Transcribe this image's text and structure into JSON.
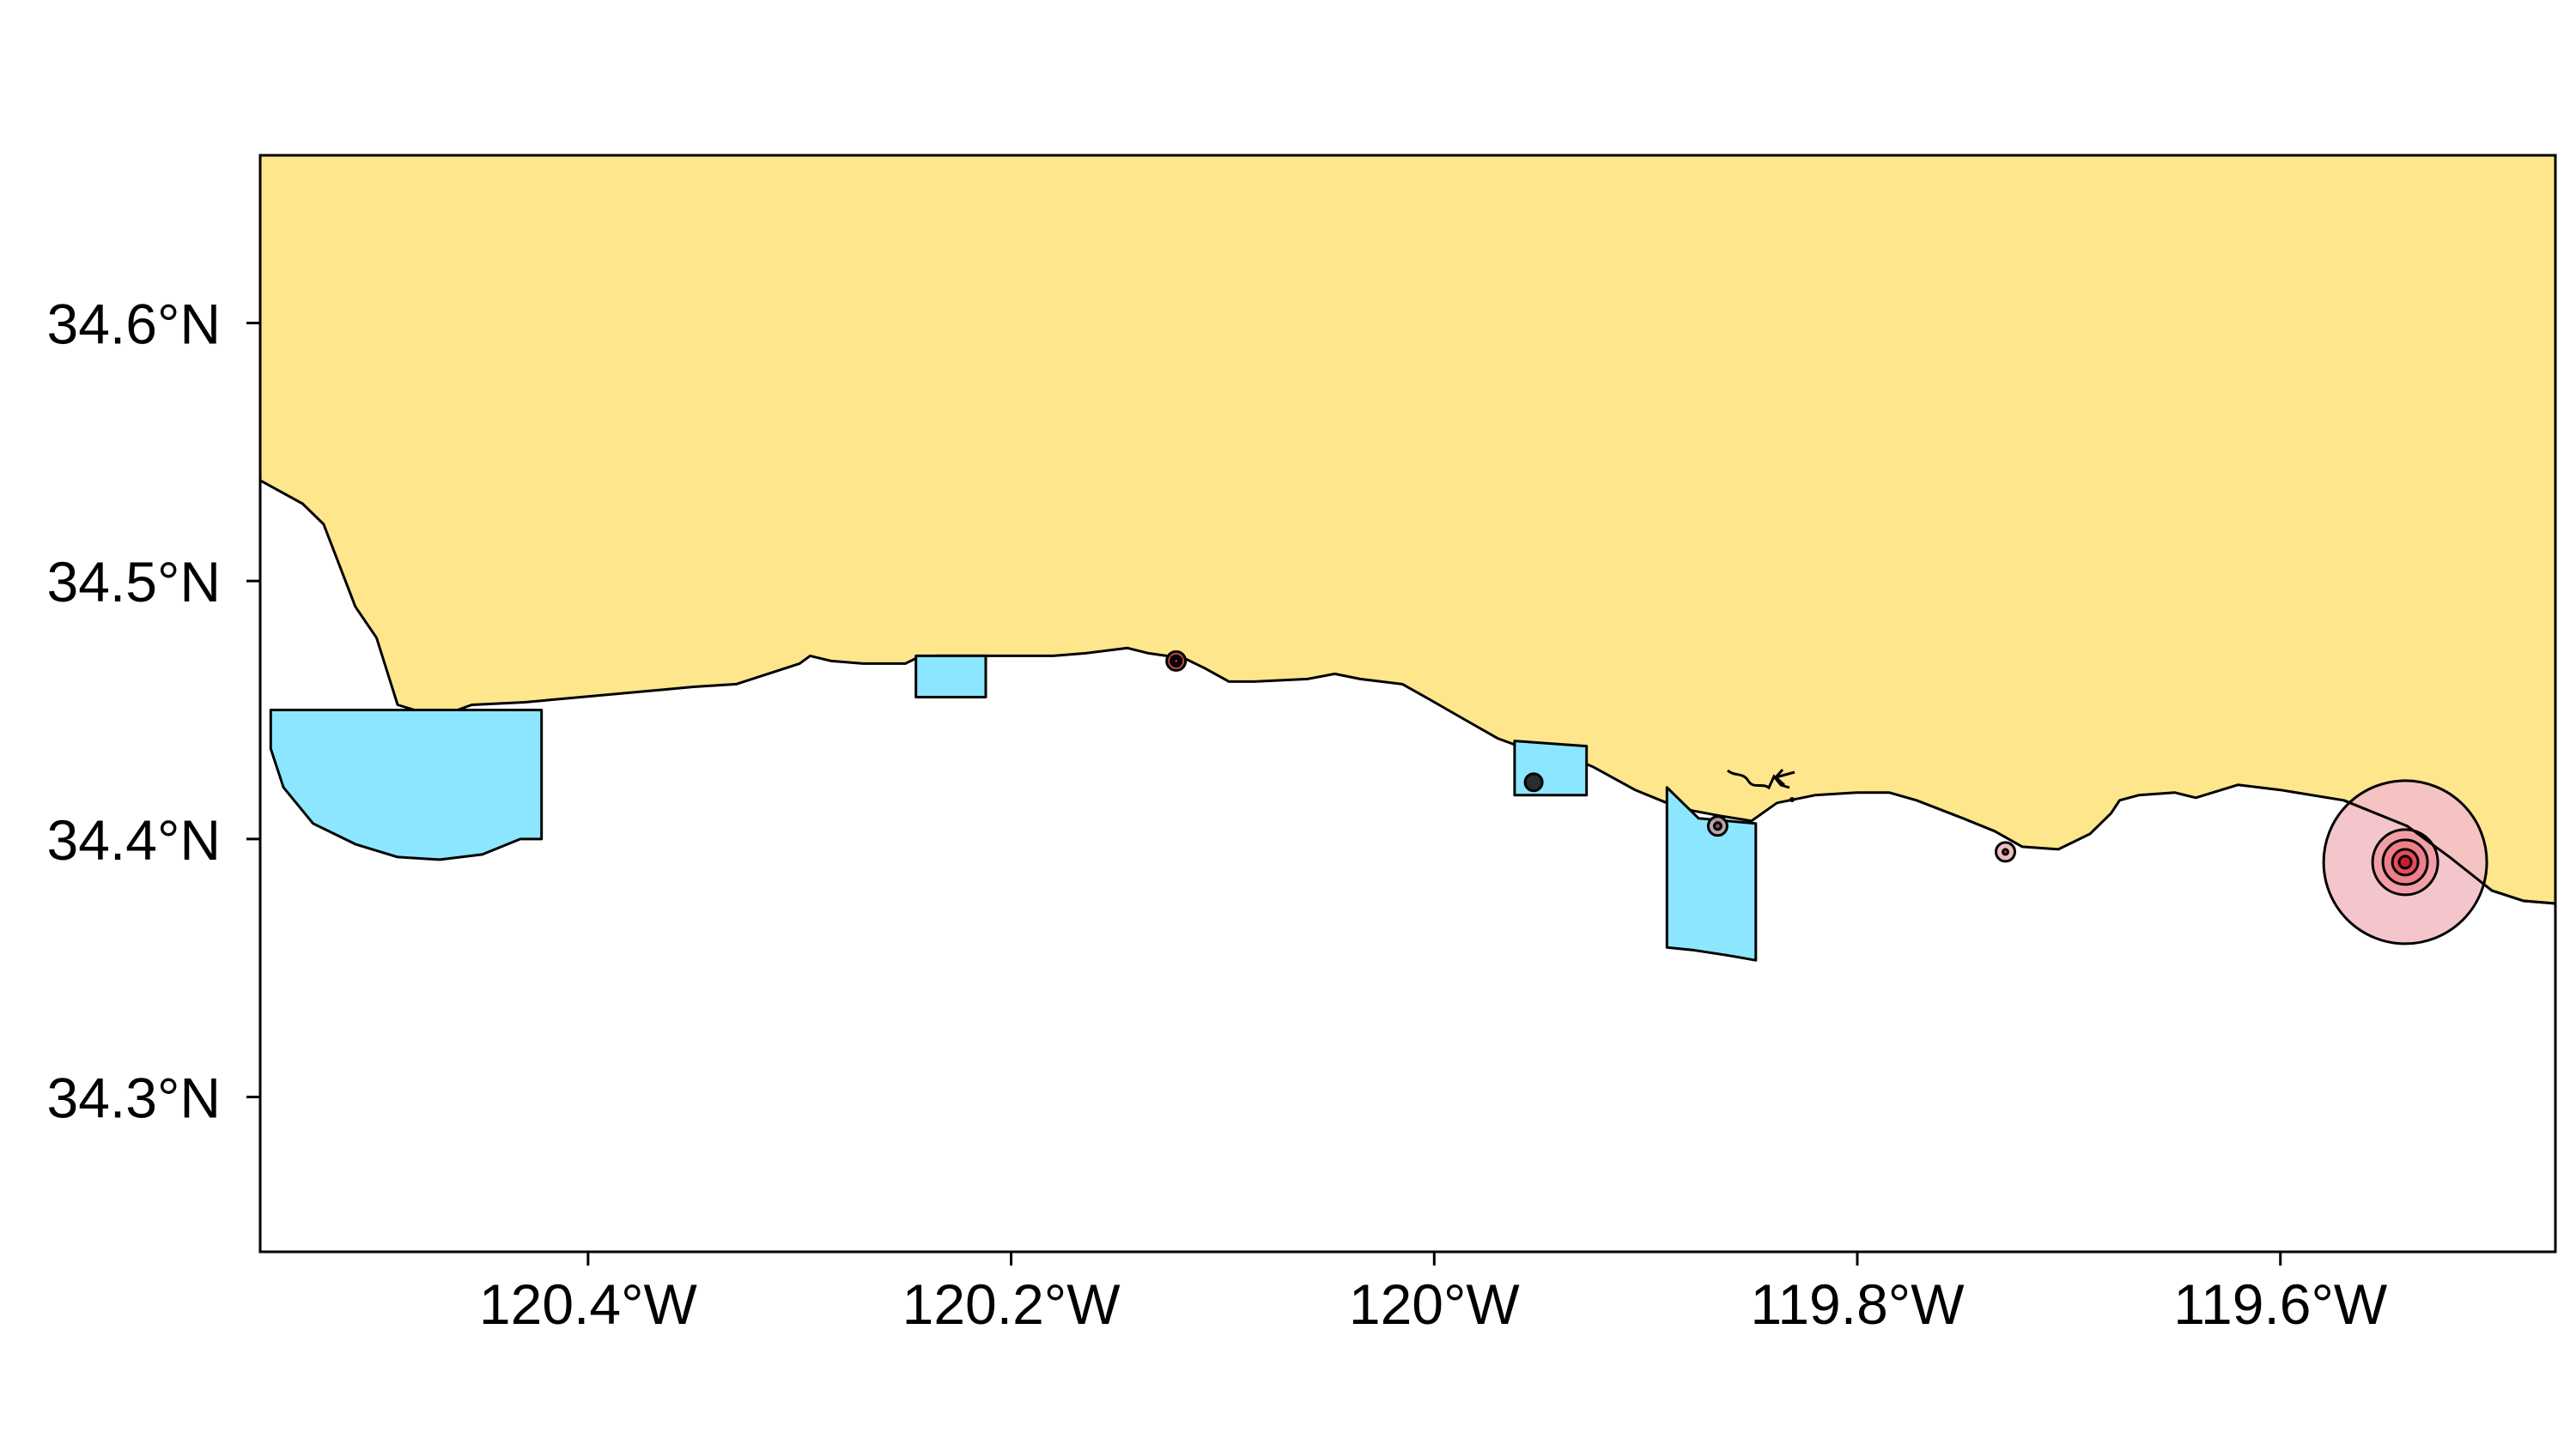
{
  "colors": {
    "land": "#FDE68C",
    "protected_area": "#8CE6FF",
    "outline": "#000000",
    "background": "#FFFFFF"
  },
  "axes": {
    "x_range": [
      -120.555,
      -119.47
    ],
    "y_range": [
      34.24,
      34.665
    ],
    "x_ticks": [
      {
        "value": -120.4,
        "label": "120.4°W"
      },
      {
        "value": -120.2,
        "label": "120.2°W"
      },
      {
        "value": -120.0,
        "label": "120°W"
      },
      {
        "value": -119.8,
        "label": "119.8°W"
      },
      {
        "value": -119.6,
        "label": "119.6°W"
      }
    ],
    "y_ticks": [
      {
        "value": 34.6,
        "label": "34.6°N"
      },
      {
        "value": 34.5,
        "label": "34.5°N"
      },
      {
        "value": 34.4,
        "label": "34.4°N"
      },
      {
        "value": 34.3,
        "label": "34.3°N"
      }
    ]
  },
  "coastline": [
    [
      -120.555,
      34.539
    ],
    [
      -120.535,
      34.53
    ],
    [
      -120.525,
      34.522
    ],
    [
      -120.51,
      34.49
    ],
    [
      -120.5,
      34.478
    ],
    [
      -120.495,
      34.465
    ],
    [
      -120.49,
      34.452
    ],
    [
      -120.482,
      34.45
    ],
    [
      -120.476,
      34.447
    ],
    [
      -120.465,
      34.449
    ],
    [
      -120.455,
      34.452
    ],
    [
      -120.43,
      34.453
    ],
    [
      -120.39,
      34.456
    ],
    [
      -120.35,
      34.459
    ],
    [
      -120.33,
      34.46
    ],
    [
      -120.315,
      34.464
    ],
    [
      -120.3,
      34.468
    ],
    [
      -120.295,
      34.471
    ],
    [
      -120.285,
      34.469
    ],
    [
      -120.27,
      34.468
    ],
    [
      -120.25,
      34.468
    ],
    [
      -120.245,
      34.47
    ],
    [
      -120.235,
      34.471
    ],
    [
      -120.22,
      34.471
    ],
    [
      -120.18,
      34.471
    ],
    [
      -120.165,
      34.472
    ],
    [
      -120.145,
      34.474
    ],
    [
      -120.135,
      34.472
    ],
    [
      -120.118,
      34.47
    ],
    [
      -120.108,
      34.466
    ],
    [
      -120.097,
      34.461
    ],
    [
      -120.085,
      34.461
    ],
    [
      -120.06,
      34.462
    ],
    [
      -120.047,
      34.464
    ],
    [
      -120.035,
      34.462
    ],
    [
      -120.015,
      34.46
    ],
    [
      -120.002,
      34.454
    ],
    [
      -119.985,
      34.446
    ],
    [
      -119.97,
      34.439
    ],
    [
      -119.96,
      34.436
    ],
    [
      -119.945,
      34.435
    ],
    [
      -119.925,
      34.428
    ],
    [
      -119.905,
      34.419
    ],
    [
      -119.89,
      34.414
    ],
    [
      -119.878,
      34.411
    ],
    [
      -119.865,
      34.409
    ],
    [
      -119.85,
      34.407
    ],
    [
      -119.838,
      34.414
    ],
    [
      -119.82,
      34.417
    ],
    [
      -119.8,
      34.418
    ],
    [
      -119.785,
      34.418
    ],
    [
      -119.772,
      34.415
    ],
    [
      -119.75,
      34.408
    ],
    [
      -119.735,
      34.403
    ],
    [
      -119.722,
      34.397
    ],
    [
      -119.705,
      34.396
    ],
    [
      -119.69,
      34.402
    ],
    [
      -119.68,
      34.41
    ],
    [
      -119.676,
      34.415
    ],
    [
      -119.667,
      34.417
    ],
    [
      -119.65,
      34.418
    ],
    [
      -119.64,
      34.416
    ],
    [
      -119.62,
      34.421
    ],
    [
      -119.6,
      34.419
    ],
    [
      -119.57,
      34.415
    ],
    [
      -119.54,
      34.405
    ],
    [
      -119.52,
      34.393
    ],
    [
      -119.5,
      34.38
    ],
    [
      -119.485,
      34.376
    ],
    [
      -119.47,
      34.375
    ]
  ],
  "protected_areas": [
    [
      [
        -120.55,
        34.45
      ],
      [
        -120.422,
        34.45
      ],
      [
        -120.422,
        34.4
      ],
      [
        -120.432,
        34.4
      ],
      [
        -120.45,
        34.394
      ],
      [
        -120.47,
        34.392
      ],
      [
        -120.49,
        34.393
      ],
      [
        -120.51,
        34.398
      ],
      [
        -120.53,
        34.406
      ],
      [
        -120.544,
        34.42
      ],
      [
        -120.55,
        34.435
      ]
    ],
    [
      [
        -120.245,
        34.471
      ],
      [
        -120.212,
        34.471
      ],
      [
        -120.212,
        34.455
      ],
      [
        -120.245,
        34.455
      ]
    ],
    [
      [
        -119.962,
        34.438
      ],
      [
        -119.928,
        34.436
      ],
      [
        -119.928,
        34.417
      ],
      [
        -119.962,
        34.417
      ]
    ],
    [
      [
        -119.89,
        34.42
      ],
      [
        -119.875,
        34.408
      ],
      [
        -119.848,
        34.406
      ],
      [
        -119.848,
        34.353
      ],
      [
        -119.862,
        34.355
      ],
      [
        -119.878,
        34.357
      ],
      [
        -119.89,
        34.358
      ]
    ]
  ],
  "bubbles": [
    {
      "lon": -120.122,
      "lat": 34.469,
      "layers": [
        {
          "r": 11,
          "fill": "#B33A3A"
        },
        {
          "r": 6,
          "fill": "#D9A7A7"
        },
        {
          "r": 3,
          "fill": "#C21F1F"
        }
      ]
    },
    {
      "lon": -119.953,
      "lat": 34.422,
      "layers": [
        {
          "r": 10,
          "fill": "#1A1A1A"
        }
      ]
    },
    {
      "lon": -119.866,
      "lat": 34.405,
      "layers": [
        {
          "r": 11,
          "fill": "#B7A3A6"
        },
        {
          "r": 4,
          "fill": "#8A3C45"
        }
      ]
    },
    {
      "lon": -119.73,
      "lat": 34.395,
      "layers": [
        {
          "r": 11,
          "fill": "#E9B8B8"
        },
        {
          "r": 3,
          "fill": "#C62828"
        }
      ]
    },
    {
      "lon": -119.541,
      "lat": 34.391,
      "layers": [
        {
          "r": 95,
          "fill": "#F4BFC6"
        },
        {
          "r": 38,
          "fill": "#F19AA2"
        },
        {
          "r": 26,
          "fill": "#EC7B85"
        },
        {
          "r": 15,
          "fill": "#E34755"
        },
        {
          "r": 7,
          "fill": "#C21B2C"
        }
      ]
    }
  ]
}
